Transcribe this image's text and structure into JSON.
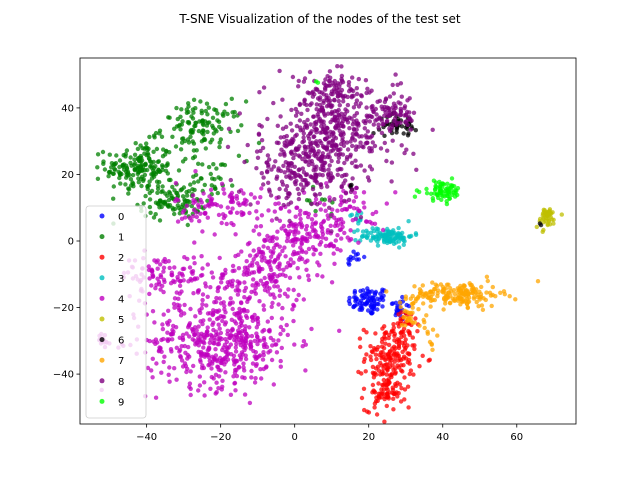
{
  "chart_data": {
    "type": "scatter",
    "title": "T-SNE Visualization of the nodes of the test set",
    "xlim": [
      -58,
      76
    ],
    "ylim": [
      -55,
      55
    ],
    "xticks": [
      -40,
      -20,
      0,
      20,
      40,
      60
    ],
    "yticks": [
      -40,
      -20,
      0,
      20,
      40
    ],
    "legend_position": "lower-left",
    "series": [
      {
        "name": "0",
        "color": "#0000ff",
        "clusters": [
          {
            "cx": 20,
            "cy": -18,
            "sx": 2.8,
            "sy": 2.2,
            "n": 80
          },
          {
            "cx": 28,
            "cy": -20,
            "sx": 1.6,
            "sy": 2.0,
            "n": 25
          },
          {
            "cx": 16,
            "cy": -5,
            "sx": 1.2,
            "sy": 1.2,
            "n": 12
          }
        ]
      },
      {
        "name": "1",
        "color": "#008000",
        "clusters": [
          {
            "cx": -42,
            "cy": 22,
            "sx": 4.5,
            "sy": 4.0,
            "n": 180
          },
          {
            "cx": -33,
            "cy": 12,
            "sx": 4.5,
            "sy": 2.5,
            "n": 100
          },
          {
            "cx": -25,
            "cy": 34,
            "sx": 5.5,
            "sy": 4.0,
            "n": 120
          },
          {
            "cx": -22,
            "cy": 20,
            "sx": 3.0,
            "sy": 3.0,
            "n": 30
          },
          {
            "cx": 6,
            "cy": 10,
            "sx": 2.0,
            "sy": 3.0,
            "n": 10
          }
        ]
      },
      {
        "name": "2",
        "color": "#ff0000",
        "clusters": [
          {
            "cx": 26,
            "cy": -35,
            "sx": 3.5,
            "sy": 5.0,
            "n": 180
          },
          {
            "cx": 24,
            "cy": -46,
            "sx": 2.5,
            "sy": 2.5,
            "n": 60
          },
          {
            "cx": 30,
            "cy": -25,
            "sx": 1.5,
            "sy": 2.5,
            "n": 25
          }
        ]
      },
      {
        "name": "3",
        "color": "#00bfbf",
        "clusters": [
          {
            "cx": 25,
            "cy": 1.5,
            "sx": 3.5,
            "sy": 1.3,
            "n": 110
          },
          {
            "cx": 17,
            "cy": 7,
            "sx": 1.2,
            "sy": 1.0,
            "n": 10
          }
        ]
      },
      {
        "name": "4",
        "color": "#bf00bf",
        "clusters": [
          {
            "cx": -20,
            "cy": -30,
            "sx": 10,
            "sy": 7,
            "n": 500
          },
          {
            "cx": -10,
            "cy": -12,
            "sx": 7,
            "sy": 5,
            "n": 140
          },
          {
            "cx": -35,
            "cy": -10,
            "sx": 6,
            "sy": 3,
            "n": 100
          },
          {
            "cx": 2,
            "cy": 3,
            "sx": 6,
            "sy": 4,
            "n": 150
          },
          {
            "cx": -20,
            "cy": 10,
            "sx": 6,
            "sy": 4,
            "n": 100
          },
          {
            "cx": -5,
            "cy": -5,
            "sx": 5,
            "sy": 3,
            "n": 60
          },
          {
            "cx": 15,
            "cy": 10,
            "sx": 5,
            "sy": 4,
            "n": 60
          },
          {
            "cx": -52,
            "cy": -30,
            "sx": 1.0,
            "sy": 1.2,
            "n": 15
          }
        ]
      },
      {
        "name": "5",
        "color": "#bfbf00",
        "clusters": [
          {
            "cx": 68,
            "cy": 7,
            "sx": 1.5,
            "sy": 1.6,
            "n": 45
          }
        ]
      },
      {
        "name": "6",
        "color": "#000000",
        "clusters": [
          {
            "cx": 28,
            "cy": 35,
            "sx": 2.5,
            "sy": 1.5,
            "n": 45
          },
          {
            "cx": 15,
            "cy": 16,
            "sx": 1.0,
            "sy": 1.0,
            "n": 4
          },
          {
            "cx": 67,
            "cy": 5,
            "sx": 0.5,
            "sy": 0.5,
            "n": 2
          }
        ]
      },
      {
        "name": "7",
        "color": "#ffa500",
        "clusters": [
          {
            "cx": 44,
            "cy": -16,
            "sx": 6,
            "sy": 1.8,
            "n": 170
          },
          {
            "cx": 31,
            "cy": -22,
            "sx": 2,
            "sy": 3,
            "n": 30
          },
          {
            "cx": 36,
            "cy": -30,
            "sx": 1.5,
            "sy": 3,
            "n": 10
          }
        ]
      },
      {
        "name": "8",
        "color": "#800080",
        "clusters": [
          {
            "cx": 10,
            "cy": 32,
            "sx": 9,
            "sy": 8,
            "n": 450
          },
          {
            "cx": 0,
            "cy": 20,
            "sx": 6,
            "sy": 5,
            "n": 150
          },
          {
            "cx": 25,
            "cy": 38,
            "sx": 4,
            "sy": 3,
            "n": 80
          },
          {
            "cx": 10,
            "cy": 45,
            "sx": 3,
            "sy": 2.5,
            "n": 60
          }
        ]
      },
      {
        "name": "9",
        "color": "#00ff00",
        "clusters": [
          {
            "cx": 40,
            "cy": 15,
            "sx": 2.8,
            "sy": 1.5,
            "n": 70
          },
          {
            "cx": 6,
            "cy": 48,
            "sx": 0.5,
            "sy": 0.5,
            "n": 2
          }
        ]
      }
    ]
  }
}
